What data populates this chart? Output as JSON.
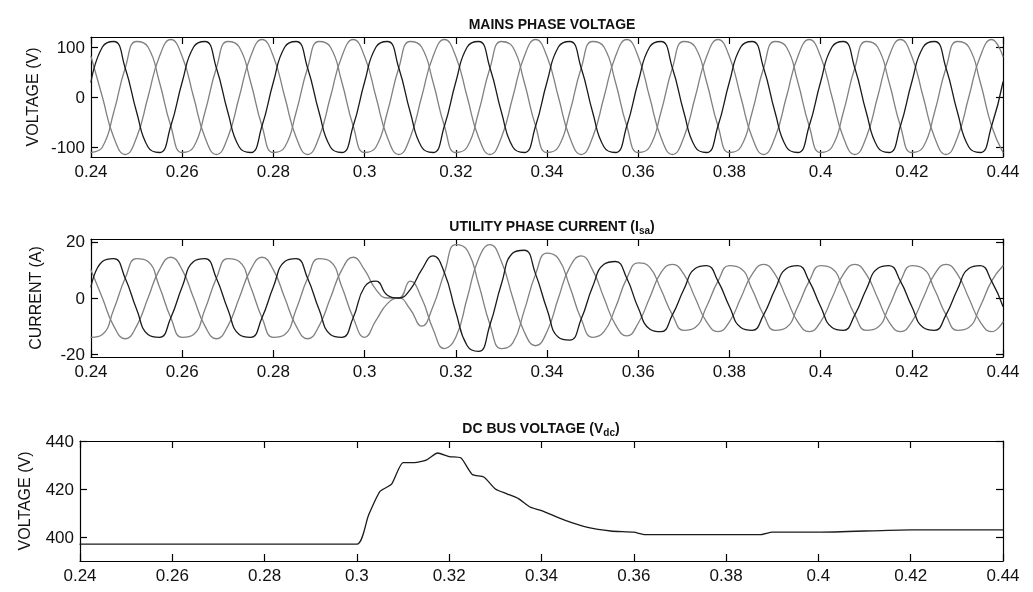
{
  "chart_data": [
    {
      "type": "line",
      "title": "MAINS PHASE VOLTAGE",
      "ylabel": "VOLTAGE (V)",
      "xlim": [
        0.24,
        0.44
      ],
      "xticks": [
        0.24,
        0.26,
        0.28,
        0.3,
        0.32,
        0.34,
        0.36,
        0.38,
        0.4,
        0.42,
        0.44
      ],
      "ylim": [
        -120,
        120
      ],
      "yticks": [
        -100,
        0,
        100
      ],
      "x": [
        0.24,
        0.2425,
        0.245,
        0.2475,
        0.25,
        0.2525,
        0.255,
        0.2575,
        0.26,
        0.2625,
        0.265,
        0.2675,
        0.27,
        0.2725,
        0.275,
        0.2775,
        0.28,
        0.2825,
        0.285,
        0.2875,
        0.29,
        0.2925,
        0.295,
        0.2975,
        0.3,
        0.3025,
        0.305,
        0.3075,
        0.31,
        0.3125,
        0.315,
        0.3175,
        0.32,
        0.3225,
        0.325,
        0.3275,
        0.33,
        0.3325,
        0.335,
        0.3375,
        0.34,
        0.3425,
        0.345,
        0.3475,
        0.35,
        0.3525,
        0.355,
        0.3575,
        0.36,
        0.3625,
        0.365,
        0.3675,
        0.37,
        0.3725,
        0.375,
        0.3775,
        0.38,
        0.3825,
        0.385,
        0.3875,
        0.39,
        0.3925,
        0.395,
        0.3975,
        0.4,
        0.4025,
        0.405,
        0.4075,
        0.41,
        0.4125,
        0.415,
        0.4175,
        0.42,
        0.4225,
        0.425,
        0.4275,
        0.43,
        0.4325,
        0.435,
        0.4375,
        0.44
      ],
      "series": [
        {
          "color": "#1a1a1a",
          "values": [
            30,
            100,
            111,
            58,
            -30,
            -100,
            -111,
            -58,
            30,
            100,
            111,
            58,
            -30,
            -100,
            -111,
            -58,
            30,
            100,
            111,
            58,
            -30,
            -100,
            -111,
            -58,
            30,
            100,
            111,
            58,
            -30,
            -100,
            -111,
            -58,
            30,
            100,
            111,
            58,
            -30,
            -100,
            -111,
            -58,
            30,
            100,
            111,
            58,
            -30,
            -100,
            -111,
            -58,
            30,
            100,
            111,
            58,
            -30,
            -100,
            -111,
            -58,
            30,
            100,
            111,
            58,
            -30,
            -100,
            -111,
            -58,
            30,
            100,
            111,
            58,
            -30,
            -100,
            -111,
            -58,
            30,
            100,
            111,
            58,
            -30,
            -100,
            -111,
            -58,
            30
          ]
        },
        {
          "color": "#808080",
          "values": [
            -111,
            -100,
            -30,
            58,
            111,
            100,
            30,
            -58,
            -111,
            -100,
            -30,
            58,
            111,
            100,
            30,
            -58,
            -111,
            -100,
            -30,
            58,
            111,
            100,
            30,
            -58,
            -111,
            -100,
            -30,
            58,
            111,
            100,
            30,
            -58,
            -111,
            -100,
            -30,
            58,
            111,
            100,
            30,
            -58,
            -111,
            -100,
            -30,
            58,
            111,
            100,
            30,
            -58,
            -111,
            -100,
            -30,
            58,
            111,
            100,
            30,
            -58,
            -111,
            -100,
            -30,
            58,
            111,
            100,
            30,
            -58,
            -111,
            -100,
            -30,
            58,
            111,
            100,
            30,
            -58,
            -111,
            -100,
            -30,
            58,
            111,
            100,
            30,
            -58,
            -111
          ]
        },
        {
          "color": "#808080",
          "values": [
            81,
            0,
            -81,
            -115,
            -81,
            0,
            81,
            115,
            81,
            0,
            -81,
            -115,
            -81,
            0,
            81,
            115,
            81,
            0,
            -81,
            -115,
            -81,
            0,
            81,
            115,
            81,
            0,
            -81,
            -115,
            -81,
            0,
            81,
            115,
            81,
            0,
            -81,
            -115,
            -81,
            0,
            81,
            115,
            81,
            0,
            -81,
            -115,
            -81,
            0,
            81,
            115,
            81,
            0,
            -81,
            -115,
            -81,
            0,
            81,
            115,
            81,
            0,
            -81,
            -115,
            -81,
            0,
            81,
            115,
            81,
            0,
            -81,
            -115,
            -81,
            0,
            81,
            115,
            81,
            0,
            -81,
            -115,
            -81,
            0,
            81,
            115,
            81
          ]
        }
      ]
    },
    {
      "type": "line",
      "title": "UTILITY PHASE CURRENT (I$_{sa}$)",
      "ylabel": "CURRENT (A)",
      "xlim": [
        0.24,
        0.44
      ],
      "xticks": [
        0.24,
        0.26,
        0.28,
        0.3,
        0.32,
        0.34,
        0.36,
        0.38,
        0.4,
        0.42,
        0.44
      ],
      "ylim": [
        -21,
        21
      ],
      "yticks": [
        -20,
        0,
        20
      ],
      "x": [
        0.24,
        0.2425,
        0.245,
        0.2475,
        0.25,
        0.2525,
        0.255,
        0.2575,
        0.26,
        0.2625,
        0.265,
        0.2675,
        0.27,
        0.2725,
        0.275,
        0.2775,
        0.28,
        0.2825,
        0.285,
        0.2875,
        0.29,
        0.2925,
        0.295,
        0.2975,
        0.3,
        0.3025,
        0.305,
        0.3075,
        0.31,
        0.3125,
        0.315,
        0.3175,
        0.32,
        0.3225,
        0.325,
        0.3275,
        0.33,
        0.3325,
        0.335,
        0.3375,
        0.34,
        0.3425,
        0.345,
        0.3475,
        0.35,
        0.3525,
        0.355,
        0.3575,
        0.36,
        0.3625,
        0.365,
        0.3675,
        0.37,
        0.3725,
        0.375,
        0.3775,
        0.38,
        0.3825,
        0.385,
        0.3875,
        0.39,
        0.3925,
        0.395,
        0.3975,
        0.4,
        0.4025,
        0.405,
        0.4075,
        0.41,
        0.4125,
        0.415,
        0.4175,
        0.42,
        0.4225,
        0.425,
        0.4275,
        0.43,
        0.4325,
        0.435,
        0.4375,
        0.44
      ],
      "series": [
        {
          "color": "#1a1a1a",
          "values": [
            4,
            13,
            14,
            7,
            -4,
            -13,
            -14,
            -7,
            4,
            13,
            14,
            7,
            -4,
            -13,
            -14,
            -7,
            4,
            13,
            14,
            7,
            -4,
            -13,
            -14,
            -7,
            4,
            6,
            1,
            0,
            3,
            10,
            15,
            9,
            -5,
            -17,
            -19,
            -9.5,
            5,
            16,
            17,
            8.5,
            -4,
            -14,
            -15,
            -7.5,
            4,
            12,
            13,
            7,
            -3.5,
            -11,
            -12,
            -6,
            3,
            10.5,
            11.5,
            6,
            -3,
            -10.5,
            -11.5,
            -6,
            3,
            10.5,
            11.5,
            6,
            -3,
            -10.5,
            -11.5,
            -6,
            3,
            10.5,
            11.5,
            6,
            -3,
            -10.5,
            -11.5,
            -6,
            3,
            10.5,
            11.5,
            6,
            -3
          ]
        },
        {
          "color": "#808080",
          "values": [
            -14,
            -13,
            -4,
            7,
            14,
            13,
            4,
            -7,
            -14,
            -13,
            -4,
            7,
            14,
            13,
            4,
            -7,
            -14,
            -13,
            -4,
            7,
            14,
            13,
            4,
            -7,
            -14,
            -8,
            -2,
            0,
            -4,
            -10,
            -3,
            9,
            19,
            17,
            5,
            -9.5,
            -18,
            -16,
            -4.5,
            8.5,
            16,
            14,
            4,
            -7.5,
            -14,
            -12,
            -3.5,
            7,
            12.5,
            11,
            3,
            -6,
            -11.5,
            -10.5,
            -3,
            6,
            11.5,
            10.5,
            3,
            -6,
            -11.5,
            -10.5,
            -3,
            6,
            11.5,
            10.5,
            3,
            -6,
            -11.5,
            -10.5,
            -3,
            6,
            11.5,
            10.5,
            3,
            -6,
            -11.5,
            -10.5,
            -3,
            6,
            11.5
          ]
        },
        {
          "color": "#808080",
          "values": [
            10,
            0,
            -10,
            -14.5,
            -10,
            0,
            10,
            14.5,
            10,
            0,
            -10,
            -14.5,
            -10,
            0,
            10,
            14.5,
            10,
            0,
            -10,
            -14.5,
            -10,
            0,
            10,
            14.5,
            10,
            3,
            0,
            0,
            6,
            0,
            -11,
            -18,
            -14,
            0,
            14,
            19,
            13,
            0,
            -12,
            -17,
            -12,
            0,
            11,
            15,
            10,
            0,
            -9.5,
            -13.5,
            -9,
            0,
            9,
            12,
            8.5,
            0,
            -8.5,
            -12,
            -8.5,
            0,
            8.5,
            12,
            8.5,
            0,
            -8.5,
            -12,
            -8.5,
            0,
            8.5,
            12,
            8.5,
            0,
            -8.5,
            -12,
            -8.5,
            0,
            8.5,
            12,
            8.5,
            0,
            -8.5,
            -12,
            -8.5
          ]
        }
      ]
    },
    {
      "type": "line",
      "title": "DC BUS VOLTAGE (V$_{dc}$)",
      "ylabel": "VOLTAGE (V)",
      "xlim": [
        0.24,
        0.44
      ],
      "xticks": [
        0.24,
        0.26,
        0.28,
        0.3,
        0.32,
        0.34,
        0.36,
        0.38,
        0.4,
        0.42,
        0.44
      ],
      "ylim": [
        390,
        440
      ],
      "yticks": [
        400,
        420,
        440
      ],
      "x": [
        0.24,
        0.3,
        0.3025,
        0.305,
        0.3075,
        0.31,
        0.3125,
        0.315,
        0.3175,
        0.32,
        0.3225,
        0.325,
        0.3275,
        0.33,
        0.3325,
        0.335,
        0.3375,
        0.34,
        0.345,
        0.35,
        0.355,
        0.36,
        0.3625,
        0.3875,
        0.39,
        0.4,
        0.42,
        0.44
      ],
      "series": [
        {
          "color": "#1a1a1a",
          "values": [
            397,
            397,
            409,
            419,
            422,
            431,
            431,
            432,
            435,
            433.5,
            433,
            426,
            425,
            420,
            418,
            416,
            412.5,
            411,
            407,
            404,
            402.5,
            402,
            401,
            401,
            402,
            402,
            403,
            403
          ]
        }
      ]
    }
  ]
}
